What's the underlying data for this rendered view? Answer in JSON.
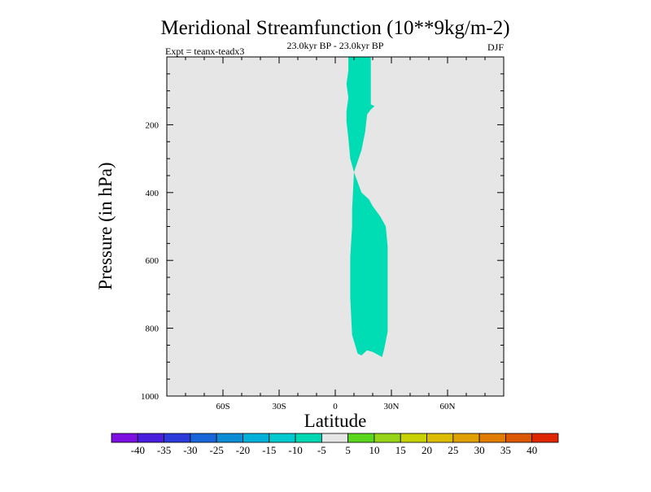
{
  "chart_data": {
    "type": "contour",
    "title": "Meridional Streamfunction (10**9kg/m-2)",
    "subtitle": "23.0kyr BP - 23.0kyr BP",
    "left_label": "Expt = teanx-teadx3",
    "right_label": "DJF",
    "xlabel": "Latitude",
    "ylabel": "Pressure (in hPa)",
    "xlim": [
      -90,
      90
    ],
    "ylim": [
      1000,
      0
    ],
    "x_ticks": [
      -60,
      -30,
      0,
      30,
      60
    ],
    "x_tick_labels": [
      "60S",
      "30S",
      "0",
      "30N",
      "60N"
    ],
    "y_ticks": [
      200,
      400,
      600,
      800,
      1000
    ],
    "y_tick_labels": [
      "200",
      "400",
      "600",
      "800",
      "1000"
    ],
    "background_value_range": [
      -5,
      5
    ],
    "filled_regions": [
      {
        "name": "upper-lobe",
        "level_range": [
          -10,
          -5
        ],
        "polygon": [
          [
            7,
            0
          ],
          [
            19,
            0
          ],
          [
            19,
            140
          ],
          [
            21,
            145
          ],
          [
            19,
            155
          ],
          [
            17,
            170
          ],
          [
            16,
            220
          ],
          [
            14,
            275
          ],
          [
            10,
            340
          ],
          [
            8,
            300
          ],
          [
            7,
            240
          ],
          [
            6,
            190
          ],
          [
            6,
            160
          ],
          [
            7,
            120
          ],
          [
            6,
            80
          ],
          [
            7,
            40
          ]
        ]
      },
      {
        "name": "lower-lobe",
        "level_range": [
          -10,
          -5
        ],
        "polygon": [
          [
            10,
            340
          ],
          [
            14,
            400
          ],
          [
            18,
            420
          ],
          [
            20,
            440
          ],
          [
            24,
            470
          ],
          [
            27,
            500
          ],
          [
            28,
            560
          ],
          [
            28,
            690
          ],
          [
            28,
            810
          ],
          [
            26,
            865
          ],
          [
            25,
            885
          ],
          [
            20,
            870
          ],
          [
            17,
            865
          ],
          [
            14,
            880
          ],
          [
            12,
            875
          ],
          [
            9,
            820
          ],
          [
            8,
            710
          ],
          [
            8,
            590
          ],
          [
            9,
            500
          ],
          [
            9,
            450
          ]
        ]
      }
    ],
    "colorbar": {
      "labels": [
        "-40",
        "-35",
        "-30",
        "-25",
        "-20",
        "-15",
        "-10",
        "-5",
        "5",
        "10",
        "15",
        "20",
        "25",
        "30",
        "35",
        "40"
      ],
      "colors": [
        "#7d0fe0",
        "#4a1edd",
        "#2b3ad9",
        "#1966d8",
        "#0d8cd6",
        "#00b0d8",
        "#00cad0",
        "#00d8b4",
        "#e6e6e6",
        "#5ad61e",
        "#96d41a",
        "#c8d200",
        "#dcbc00",
        "#e0a000",
        "#e07c00",
        "#dc5800",
        "#e02800"
      ]
    },
    "colors": {
      "plot_background": "#e6e6e6",
      "fill": "#00ddb5"
    }
  }
}
